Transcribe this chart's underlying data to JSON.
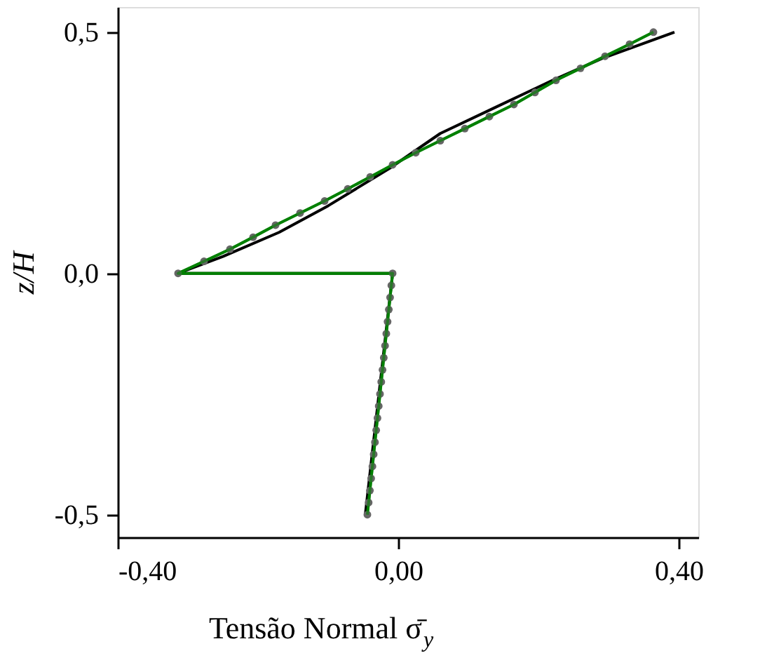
{
  "chart_data": {
    "type": "line",
    "xlabel": "Tensão Normal σ̄$_{y}$",
    "ylabel": "z/H",
    "series": [
      {
        "color": "#000000",
        "marker": "none",
        "x": [
          -0.047,
          -0.008,
          -0.314,
          -0.25,
          -0.17,
          -0.1,
          -0.012,
          0.06,
          0.14,
          0.22,
          0.29,
          0.394
        ],
        "values": [
          -0.5,
          0,
          0,
          0.035,
          0.085,
          0.14,
          0.218,
          0.29,
          0.345,
          0.4,
          0.445,
          0.5
        ]
      },
      {
        "color": "#008000",
        "marker": "circle",
        "x": [
          -0.044,
          -0.0422,
          -0.0404,
          -0.0386,
          -0.0368,
          -0.035,
          -0.0332,
          -0.0314,
          -0.0296,
          -0.0278,
          -0.026,
          -0.0242,
          -0.0224,
          -0.0206,
          -0.0188,
          -0.017,
          -0.0152,
          -0.0134,
          -0.0116,
          -0.0098,
          -0.008,
          -0.314,
          -0.277,
          -0.24,
          -0.207,
          -0.175,
          -0.14,
          -0.105,
          -0.072,
          -0.04,
          -0.008,
          0.025,
          0.06,
          0.095,
          0.13,
          0.165,
          0.195,
          0.225,
          0.26,
          0.295,
          0.33,
          0.364
        ],
        "values": [
          -0.5,
          -0.475,
          -0.45,
          -0.425,
          -0.4,
          -0.375,
          -0.35,
          -0.325,
          -0.3,
          -0.275,
          -0.25,
          -0.225,
          -0.2,
          -0.175,
          -0.15,
          -0.125,
          -0.1,
          -0.075,
          -0.05,
          -0.025,
          0,
          0,
          0.025,
          0.05,
          0.075,
          0.1,
          0.125,
          0.15,
          0.175,
          0.2,
          0.225,
          0.25,
          0.275,
          0.3,
          0.325,
          0.35,
          0.375,
          0.4,
          0.425,
          0.45,
          0.475,
          0.5
        ]
      }
    ],
    "xlim": [
      -0.4,
      0.428
    ],
    "ylim": [
      -0.547,
      0.552
    ],
    "xticks": [
      {
        "value": -0.4,
        "label": "-0,40"
      },
      {
        "value": 0,
        "label": "0,00"
      },
      {
        "value": 0.4,
        "label": "0,40"
      }
    ],
    "yticks": [
      {
        "value": -0.5,
        "label": "-0,5"
      },
      {
        "value": 0,
        "label": "0,0"
      },
      {
        "value": 0.5,
        "label": "0,5"
      }
    ]
  }
}
